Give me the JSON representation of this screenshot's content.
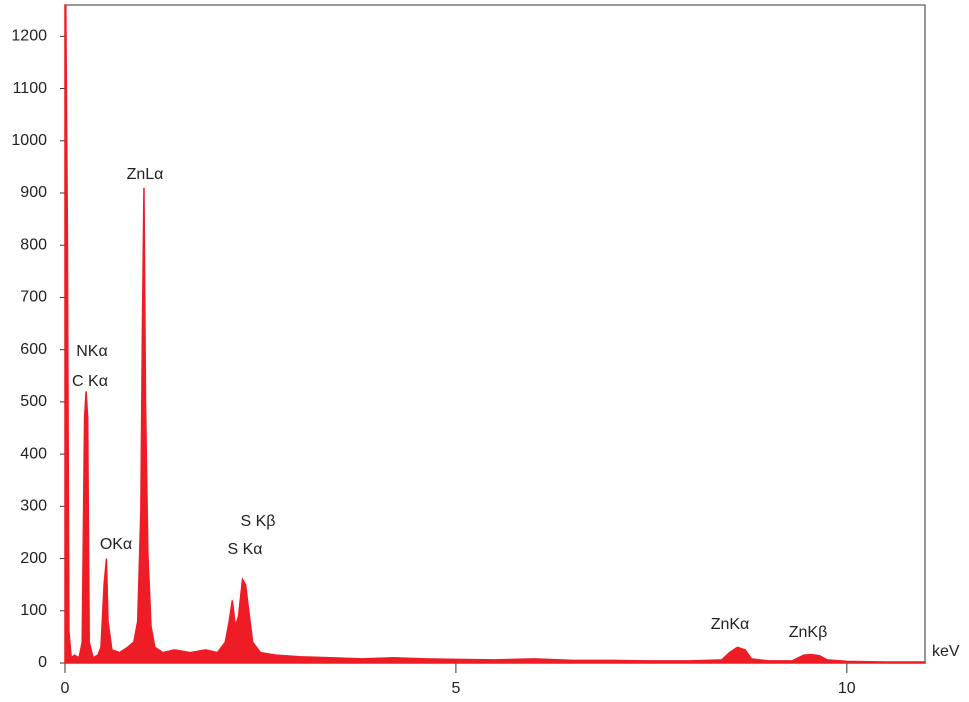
{
  "chart_data": {
    "type": "area",
    "x": [
      0,
      0.01,
      0.03,
      0.05,
      0.08,
      0.12,
      0.18,
      0.22,
      0.25,
      0.27,
      0.29,
      0.31,
      0.36,
      0.42,
      0.46,
      0.5,
      0.53,
      0.55,
      0.6,
      0.7,
      0.8,
      0.88,
      0.93,
      0.97,
      0.99,
      1.01,
      1.03,
      1.06,
      1.1,
      1.15,
      1.25,
      1.4,
      1.6,
      1.8,
      1.95,
      2.05,
      2.1,
      2.14,
      2.18,
      2.22,
      2.27,
      2.31,
      2.35,
      2.4,
      2.5,
      2.7,
      3.0,
      3.4,
      3.8,
      4.2,
      4.6,
      5.0,
      5.5,
      6.0,
      6.5,
      7.0,
      7.5,
      8.0,
      8.4,
      8.5,
      8.6,
      8.7,
      8.78,
      9.0,
      9.3,
      9.45,
      9.55,
      9.65,
      9.75,
      10.0,
      10.5,
      11.0
    ],
    "values": [
      1260,
      1260,
      840,
      60,
      10,
      15,
      10,
      40,
      470,
      520,
      470,
      40,
      10,
      15,
      30,
      150,
      200,
      80,
      25,
      20,
      30,
      40,
      80,
      290,
      640,
      910,
      500,
      210,
      70,
      30,
      20,
      25,
      20,
      25,
      20,
      40,
      80,
      120,
      70,
      90,
      160,
      150,
      100,
      40,
      20,
      15,
      12,
      10,
      8,
      10,
      8,
      7,
      6,
      8,
      5,
      5,
      4,
      4,
      6,
      20,
      30,
      25,
      8,
      4,
      4,
      15,
      16,
      14,
      6,
      3,
      2,
      2
    ],
    "color": "#ee1c25",
    "xlim": [
      0,
      11
    ],
    "ylim": [
      0,
      1260
    ],
    "xticks": [
      0,
      5,
      10
    ],
    "yticks": [
      0,
      100,
      200,
      300,
      400,
      500,
      600,
      700,
      800,
      900,
      1000,
      1100,
      1200
    ],
    "x_label": "keV",
    "annotations": [
      "ZnLα",
      "NKα",
      "C Kα",
      "OKα",
      "S Kβ",
      "S Kα",
      "ZnKα",
      "ZnKβ"
    ]
  }
}
